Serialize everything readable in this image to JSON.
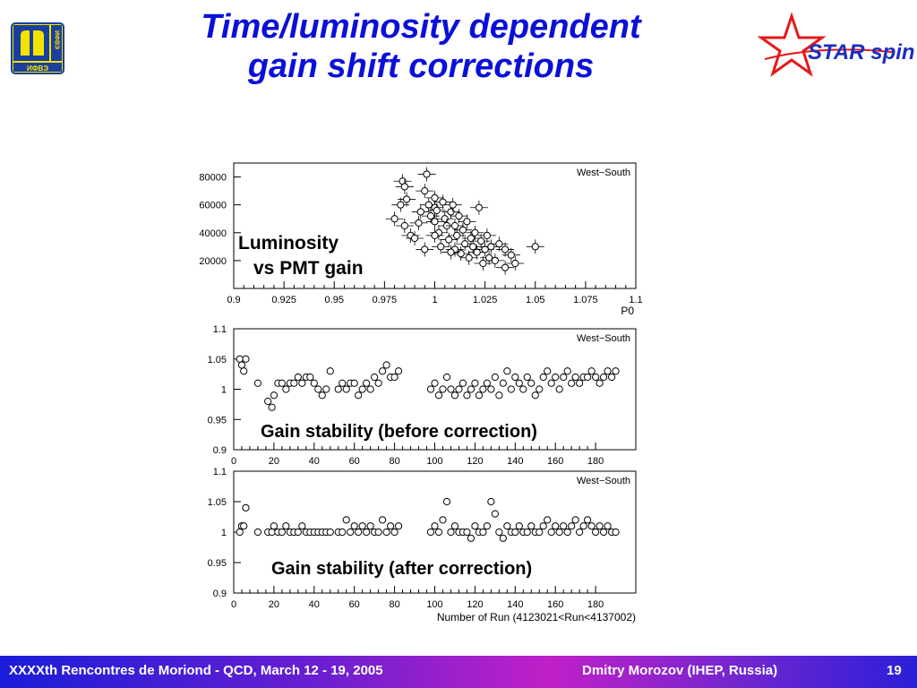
{
  "slide": {
    "title_line1": "Time/luminosity dependent",
    "title_line2": "gain shift corrections"
  },
  "logos": {
    "left": {
      "text_side": "ИФВЭ",
      "text": "ИФВЭ"
    },
    "right": {
      "text": "STAR spin"
    }
  },
  "footer": {
    "conference": "XXXXth Rencontres de Moriond - QCD, March 12 - 19, 2005",
    "author": "Dmitry Morozov (IHEP, Russia)",
    "page": "19"
  },
  "chart_data": [
    {
      "type": "scatter",
      "title": "West−South",
      "annotation": [
        "Luminosity",
        "vs PMT gain"
      ],
      "xlabel": "P0",
      "ylabel": "",
      "xlim": [
        0.9,
        1.1
      ],
      "ylim": [
        0,
        90000
      ],
      "xticks": [
        "0.9",
        "0.925",
        "0.95",
        "0.975",
        "1",
        "1.025",
        "1.05",
        "1.075",
        "1.1"
      ],
      "yticks": [
        "20000",
        "40000",
        "60000",
        "80000"
      ],
      "xtick_values": [
        0.9,
        0.925,
        0.95,
        0.975,
        1,
        1.025,
        1.05,
        1.075,
        1.1
      ],
      "ytick_values": [
        20000,
        40000,
        60000,
        80000
      ],
      "points": [
        [
          0.98,
          50000
        ],
        [
          0.983,
          60000
        ],
        [
          0.984,
          77000
        ],
        [
          0.985,
          73000
        ],
        [
          0.986,
          64000
        ],
        [
          0.988,
          38000
        ],
        [
          0.99,
          36000
        ],
        [
          0.992,
          47000
        ],
        [
          0.993,
          55000
        ],
        [
          0.995,
          70000
        ],
        [
          0.996,
          82000
        ],
        [
          0.997,
          60000
        ],
        [
          0.998,
          52000
        ],
        [
          1.0,
          65000
        ],
        [
          1.0,
          58000
        ],
        [
          1.0,
          48000
        ],
        [
          1.001,
          56000
        ],
        [
          1.002,
          40000
        ],
        [
          1.003,
          30000
        ],
        [
          1.004,
          62000
        ],
        [
          1.005,
          50000
        ],
        [
          1.006,
          45000
        ],
        [
          1.007,
          35000
        ],
        [
          1.008,
          55000
        ],
        [
          1.009,
          60000
        ],
        [
          1.01,
          28000
        ],
        [
          1.01,
          45000
        ],
        [
          1.011,
          38000
        ],
        [
          1.012,
          52000
        ],
        [
          1.013,
          25000
        ],
        [
          1.014,
          42000
        ],
        [
          1.015,
          32000
        ],
        [
          1.016,
          48000
        ],
        [
          1.017,
          22000
        ],
        [
          1.018,
          36000
        ],
        [
          1.019,
          30000
        ],
        [
          1.02,
          40000
        ],
        [
          1.021,
          26000
        ],
        [
          1.022,
          58000
        ],
        [
          1.023,
          34000
        ],
        [
          1.024,
          18000
        ],
        [
          1.025,
          28000
        ],
        [
          1.026,
          38000
        ],
        [
          1.027,
          22000
        ],
        [
          1.028,
          30000
        ],
        [
          1.03,
          20000
        ],
        [
          1.032,
          32000
        ],
        [
          1.035,
          15000
        ],
        [
          1.035,
          28000
        ],
        [
          1.038,
          24000
        ],
        [
          1.04,
          18000
        ],
        [
          1.05,
          30000
        ],
        [
          1.008,
          26000
        ],
        [
          1.0,
          38000
        ],
        [
          0.995,
          28000
        ],
        [
          0.985,
          45000
        ]
      ]
    },
    {
      "type": "scatter",
      "title": "West−South",
      "annotation": "Gain stability (before correction)",
      "xlabel": "",
      "ylabel": "",
      "xlim": [
        0,
        200
      ],
      "ylim": [
        0.9,
        1.1
      ],
      "xticks": [
        "0",
        "20",
        "40",
        "60",
        "80",
        "100",
        "120",
        "140",
        "160",
        "180"
      ],
      "yticks": [
        "0.9",
        "0.95",
        "1",
        "1.05",
        "1.1"
      ],
      "xtick_values": [
        0,
        20,
        40,
        60,
        80,
        100,
        120,
        140,
        160,
        180
      ],
      "ytick_values": [
        0.9,
        0.95,
        1,
        1.05,
        1.1
      ],
      "points": [
        [
          3,
          1.05
        ],
        [
          4,
          1.04
        ],
        [
          5,
          1.03
        ],
        [
          6,
          1.05
        ],
        [
          12,
          1.01
        ],
        [
          17,
          0.98
        ],
        [
          19,
          0.97
        ],
        [
          20,
          0.99
        ],
        [
          22,
          1.01
        ],
        [
          24,
          1.01
        ],
        [
          26,
          1.0
        ],
        [
          28,
          1.01
        ],
        [
          30,
          1.01
        ],
        [
          32,
          1.02
        ],
        [
          34,
          1.01
        ],
        [
          36,
          1.02
        ],
        [
          38,
          1.02
        ],
        [
          40,
          1.01
        ],
        [
          42,
          1.0
        ],
        [
          44,
          0.99
        ],
        [
          46,
          1.0
        ],
        [
          48,
          1.03
        ],
        [
          52,
          1.0
        ],
        [
          54,
          1.01
        ],
        [
          56,
          1.0
        ],
        [
          58,
          1.01
        ],
        [
          60,
          1.01
        ],
        [
          62,
          0.99
        ],
        [
          64,
          1.0
        ],
        [
          66,
          1.01
        ],
        [
          68,
          1.0
        ],
        [
          70,
          1.02
        ],
        [
          72,
          1.01
        ],
        [
          74,
          1.03
        ],
        [
          76,
          1.04
        ],
        [
          78,
          1.02
        ],
        [
          80,
          1.02
        ],
        [
          82,
          1.03
        ],
        [
          98,
          1.0
        ],
        [
          100,
          1.01
        ],
        [
          102,
          0.99
        ],
        [
          104,
          1.0
        ],
        [
          106,
          1.02
        ],
        [
          108,
          1.0
        ],
        [
          110,
          0.99
        ],
        [
          112,
          1.0
        ],
        [
          114,
          1.01
        ],
        [
          116,
          0.99
        ],
        [
          118,
          1.0
        ],
        [
          120,
          1.01
        ],
        [
          122,
          0.99
        ],
        [
          124,
          1.0
        ],
        [
          126,
          1.01
        ],
        [
          128,
          1.0
        ],
        [
          130,
          1.02
        ],
        [
          132,
          0.99
        ],
        [
          134,
          1.01
        ],
        [
          136,
          1.03
        ],
        [
          138,
          1.0
        ],
        [
          140,
          1.02
        ],
        [
          142,
          1.01
        ],
        [
          144,
          1.0
        ],
        [
          146,
          1.02
        ],
        [
          148,
          1.01
        ],
        [
          150,
          0.99
        ],
        [
          152,
          1.0
        ],
        [
          154,
          1.02
        ],
        [
          156,
          1.03
        ],
        [
          158,
          1.01
        ],
        [
          160,
          1.02
        ],
        [
          162,
          1.0
        ],
        [
          164,
          1.02
        ],
        [
          166,
          1.03
        ],
        [
          168,
          1.01
        ],
        [
          170,
          1.02
        ],
        [
          172,
          1.01
        ],
        [
          174,
          1.02
        ],
        [
          176,
          1.02
        ],
        [
          178,
          1.03
        ],
        [
          180,
          1.02
        ],
        [
          182,
          1.01
        ],
        [
          184,
          1.02
        ],
        [
          186,
          1.03
        ],
        [
          188,
          1.02
        ],
        [
          190,
          1.03
        ]
      ]
    },
    {
      "type": "scatter",
      "title": "West−South",
      "annotation": "Gain stability (after correction)",
      "xlabel": "Number of Run (4123021<Run<4137002)",
      "ylabel": "",
      "xlim": [
        0,
        200
      ],
      "ylim": [
        0.9,
        1.1
      ],
      "xticks": [
        "0",
        "20",
        "40",
        "60",
        "80",
        "100",
        "120",
        "140",
        "160",
        "180"
      ],
      "yticks": [
        "0.9",
        "0.95",
        "1",
        "1.05",
        "1.1"
      ],
      "xtick_values": [
        0,
        20,
        40,
        60,
        80,
        100,
        120,
        140,
        160,
        180
      ],
      "ytick_values": [
        0.9,
        0.95,
        1,
        1.05,
        1.1
      ],
      "points": [
        [
          3,
          1.0
        ],
        [
          4,
          1.01
        ],
        [
          5,
          1.01
        ],
        [
          6,
          1.04
        ],
        [
          12,
          1.0
        ],
        [
          17,
          1.0
        ],
        [
          19,
          1.0
        ],
        [
          20,
          1.01
        ],
        [
          22,
          1.0
        ],
        [
          24,
          1.0
        ],
        [
          26,
          1.01
        ],
        [
          28,
          1.0
        ],
        [
          30,
          1.0
        ],
        [
          32,
          1.0
        ],
        [
          34,
          1.01
        ],
        [
          36,
          1.0
        ],
        [
          38,
          1.0
        ],
        [
          40,
          1.0
        ],
        [
          42,
          1.0
        ],
        [
          44,
          1.0
        ],
        [
          46,
          1.0
        ],
        [
          48,
          1.0
        ],
        [
          52,
          1.0
        ],
        [
          54,
          1.0
        ],
        [
          56,
          1.02
        ],
        [
          58,
          1.0
        ],
        [
          60,
          1.01
        ],
        [
          62,
          1.0
        ],
        [
          64,
          1.01
        ],
        [
          66,
          1.0
        ],
        [
          68,
          1.01
        ],
        [
          70,
          1.0
        ],
        [
          72,
          1.0
        ],
        [
          74,
          1.02
        ],
        [
          76,
          1.0
        ],
        [
          78,
          1.01
        ],
        [
          80,
          1.0
        ],
        [
          82,
          1.01
        ],
        [
          98,
          1.0
        ],
        [
          100,
          1.01
        ],
        [
          102,
          1.0
        ],
        [
          104,
          1.02
        ],
        [
          106,
          1.05
        ],
        [
          108,
          1.0
        ],
        [
          110,
          1.01
        ],
        [
          112,
          1.0
        ],
        [
          114,
          1.0
        ],
        [
          116,
          1.0
        ],
        [
          118,
          0.99
        ],
        [
          120,
          1.01
        ],
        [
          122,
          1.0
        ],
        [
          124,
          1.0
        ],
        [
          126,
          1.01
        ],
        [
          128,
          1.05
        ],
        [
          130,
          1.03
        ],
        [
          132,
          1.0
        ],
        [
          134,
          0.99
        ],
        [
          136,
          1.01
        ],
        [
          138,
          1.0
        ],
        [
          140,
          1.0
        ],
        [
          142,
          1.01
        ],
        [
          144,
          1.0
        ],
        [
          146,
          1.0
        ],
        [
          148,
          1.01
        ],
        [
          150,
          1.0
        ],
        [
          152,
          1.0
        ],
        [
          154,
          1.01
        ],
        [
          156,
          1.02
        ],
        [
          158,
          1.0
        ],
        [
          160,
          1.01
        ],
        [
          162,
          1.0
        ],
        [
          164,
          1.01
        ],
        [
          166,
          1.0
        ],
        [
          168,
          1.01
        ],
        [
          170,
          1.02
        ],
        [
          172,
          1.0
        ],
        [
          174,
          1.01
        ],
        [
          176,
          1.02
        ],
        [
          178,
          1.01
        ],
        [
          180,
          1.0
        ],
        [
          182,
          1.01
        ],
        [
          184,
          1.0
        ],
        [
          186,
          1.01
        ],
        [
          188,
          1.0
        ],
        [
          190,
          1.0
        ]
      ]
    }
  ]
}
